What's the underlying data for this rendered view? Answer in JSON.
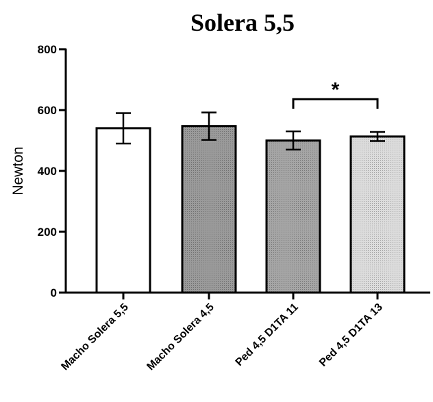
{
  "chart_data": {
    "type": "bar",
    "title": "Solera 5,5",
    "xlabel": "",
    "ylabel": "Newton",
    "ylim": [
      0,
      800
    ],
    "yticks": [
      "0",
      "200",
      "400",
      "600",
      "800"
    ],
    "grid": false,
    "categories": [
      "Macho Solera 5,5",
      "Macho Solera 4,5",
      "Ped 4,5 D1TA 11",
      "Ped 4,5 D1TA 13"
    ],
    "values": [
      540,
      547,
      500,
      513
    ],
    "error": [
      50,
      45,
      30,
      15
    ],
    "bar_fills": [
      "#ffffff",
      "#9a9a9a",
      "#a5a5a5",
      "#dcdcdc"
    ],
    "significance": {
      "between": [
        2,
        3
      ],
      "label": "*"
    }
  }
}
